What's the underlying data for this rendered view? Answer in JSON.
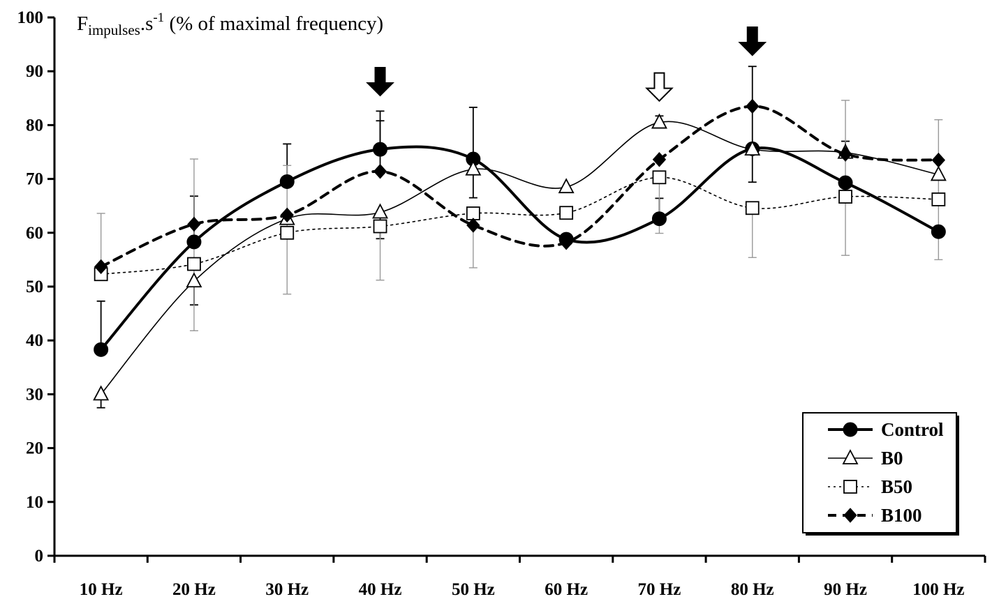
{
  "chart_data": {
    "type": "line",
    "title": "Fimpulses.s-1 (% of maximal frequency)",
    "title_parts": {
      "main": "F",
      "sub": "impulses",
      "middle": ".s",
      "sup": "-1",
      "rest": " (% of maximal frequency)"
    },
    "categories": [
      "10 Hz",
      "20 Hz",
      "30 Hz",
      "40 Hz",
      "50 Hz",
      "60 Hz",
      "70 Hz",
      "80 Hz",
      "90 Hz",
      "100 Hz"
    ],
    "ylim": [
      0,
      100
    ],
    "yticks": [
      "0",
      "10",
      "20",
      "30",
      "40",
      "50",
      "60",
      "70",
      "80",
      "90",
      "100"
    ],
    "grid": false,
    "legend_position": "bottom-right",
    "series": [
      {
        "name": "Control",
        "marker": "circle",
        "line": "thick-solid",
        "values": [
          38.3,
          58.3,
          69.5,
          75.5,
          73.7,
          58.8,
          62.6,
          75.6,
          69.3,
          60.2
        ],
        "error_upper": [
          47.3,
          66.8,
          76.5,
          82.6,
          83.3,
          58.8,
          66.4,
          83.8,
          69.3,
          60.2
        ],
        "error_lower": [
          38.3,
          58.3,
          69.5,
          75.5,
          66.5,
          58.8,
          62.6,
          69.4,
          69.3,
          60.2
        ]
      },
      {
        "name": "B0",
        "marker": "triangle",
        "line": "thin-solid",
        "values": [
          30.0,
          51.0,
          62.6,
          63.8,
          71.8,
          68.5,
          80.5,
          75.5,
          74.9,
          70.8
        ],
        "error_upper": [
          30.0,
          51.0,
          62.6,
          63.8,
          71.8,
          68.5,
          81.7,
          75.5,
          77.0,
          70.8
        ],
        "error_lower": [
          27.5,
          46.6,
          62.6,
          58.9,
          71.8,
          68.5,
          80.5,
          75.5,
          74.9,
          70.8
        ]
      },
      {
        "name": "B50",
        "marker": "square",
        "line": "dotted",
        "values": [
          52.3,
          54.2,
          60.0,
          61.2,
          63.6,
          63.7,
          70.3,
          64.6,
          66.7,
          66.2
        ],
        "error_upper": [
          63.6,
          73.7,
          72.5,
          61.2,
          63.6,
          63.7,
          70.3,
          64.6,
          84.6,
          81.0
        ],
        "error_lower": [
          52.3,
          41.8,
          48.6,
          51.2,
          53.5,
          63.7,
          59.9,
          55.4,
          55.8,
          55.0
        ]
      },
      {
        "name": "B100",
        "marker": "diamond",
        "line": "thick-dashed",
        "values": [
          53.7,
          61.6,
          63.3,
          71.4,
          61.4,
          58.2,
          73.6,
          83.5,
          74.6,
          73.5
        ],
        "error_upper": [
          53.7,
          61.6,
          63.3,
          80.8,
          61.4,
          58.2,
          73.6,
          90.9,
          74.6,
          73.5
        ],
        "error_lower": [
          53.7,
          61.6,
          63.3,
          71.4,
          61.4,
          58.2,
          73.6,
          83.5,
          74.6,
          73.5
        ]
      }
    ],
    "annotations": [
      {
        "type": "arrow-down",
        "fill": "black",
        "category": "40 Hz",
        "value": 85.5
      },
      {
        "type": "arrow-down",
        "fill": "white",
        "category": "70 Hz",
        "value": 84.5
      },
      {
        "type": "arrow-down",
        "fill": "black",
        "category": "80 Hz",
        "value": 93.0
      }
    ],
    "colors": {
      "ink": "#000000",
      "error_bar_light": "#999999",
      "background": "#ffffff"
    }
  }
}
